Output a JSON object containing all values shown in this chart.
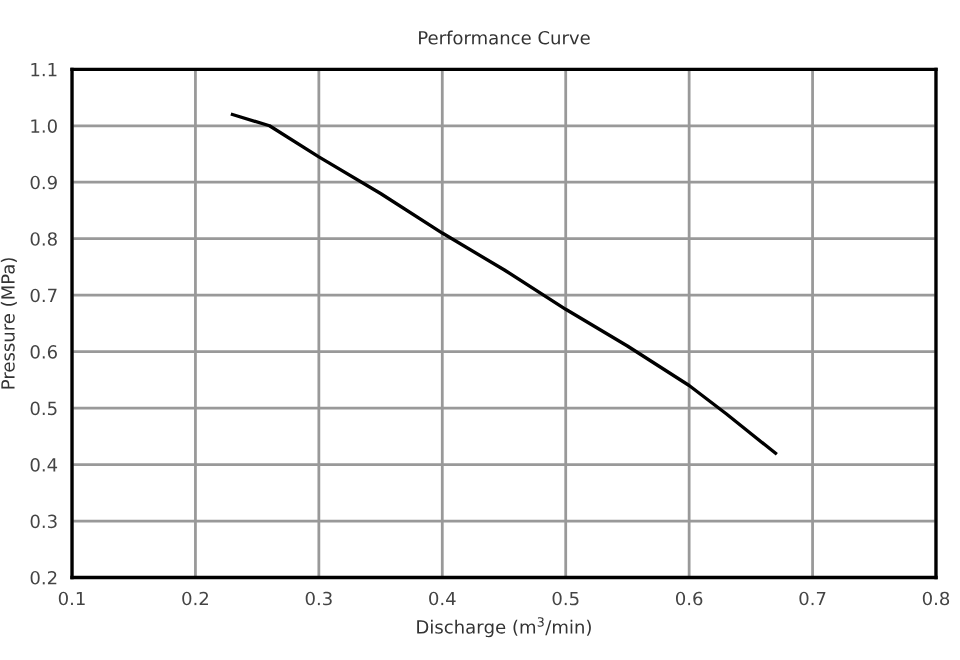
{
  "chart_data": {
    "type": "line",
    "title": "Performance Curve",
    "xlabel": "Discharge (m$^{3}$/min)",
    "ylabel": "Pressure (MPa)",
    "x": [
      0.23,
      0.26,
      0.3,
      0.35,
      0.4,
      0.45,
      0.5,
      0.55,
      0.6,
      0.63,
      0.67
    ],
    "series": [
      {
        "color": "#000000",
        "values": [
          1.02,
          1.0,
          0.945,
          0.88,
          0.81,
          0.745,
          0.675,
          0.61,
          0.54,
          0.49,
          0.42
        ]
      }
    ],
    "xlim": [
      0.1,
      0.8
    ],
    "xticks": [
      0.1,
      0.2,
      0.3,
      0.4,
      0.5,
      0.6,
      0.7,
      0.8
    ],
    "ylim": [
      0.2,
      1.1
    ],
    "yticks": [
      0.2,
      0.3,
      0.4,
      0.5,
      0.6,
      0.7,
      0.8,
      0.9,
      {
        "value": 1,
        "label": "1.0"
      },
      1.1
    ],
    "grid": true,
    "marker": "none",
    "line_style": "solid"
  }
}
